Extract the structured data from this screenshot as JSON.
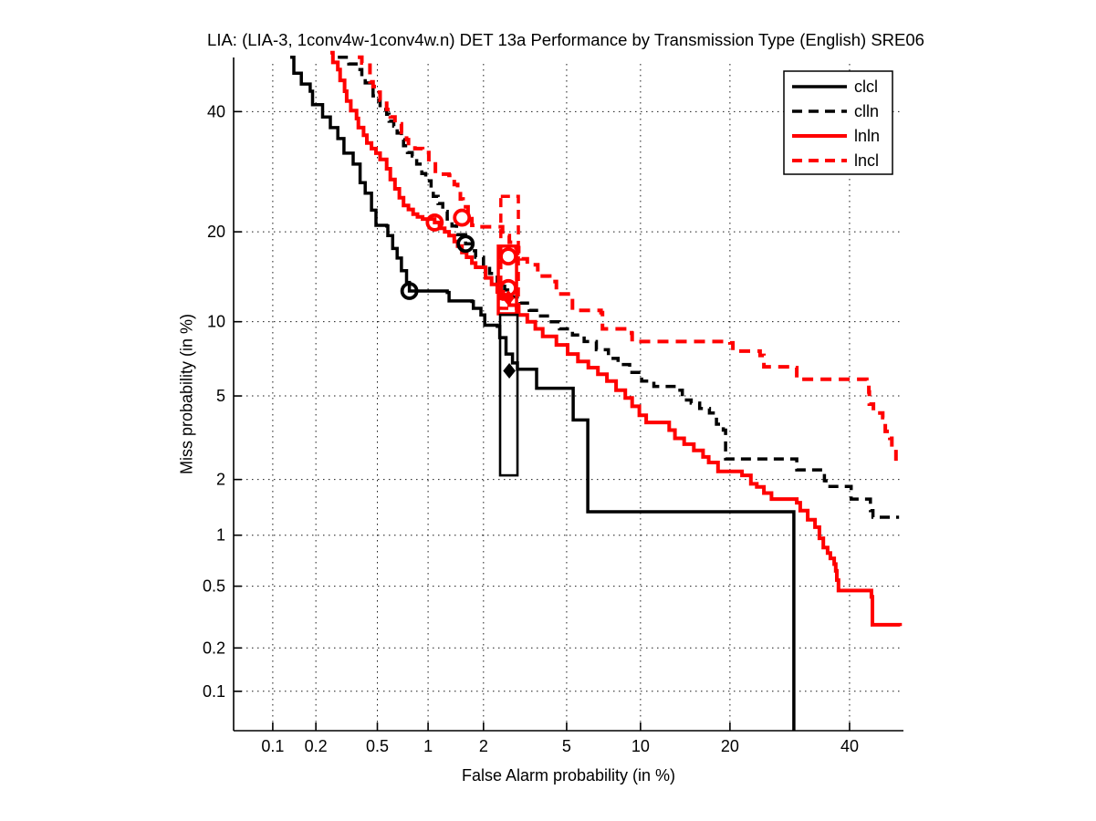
{
  "title": "LIA: (LIA-3, 1conv4w-1conv4w.n) DET 13a Performance by Transmission Type (English) SRE06",
  "axes": {
    "xlabel": "False Alarm probability (in %)",
    "ylabel": "Miss probability (in %)",
    "x_tick_labels": [
      "0.1",
      "0.2",
      "0.5",
      "1",
      "2",
      "5",
      "10",
      "20",
      "40"
    ],
    "y_tick_labels": [
      "40",
      "20",
      "10",
      "5",
      "2",
      "1",
      "0.5",
      "0.2",
      "0.1"
    ]
  },
  "chart_data": {
    "type": "line",
    "subtype": "DET staircase curves on normal-deviate (probit) scales",
    "title": "LIA: (LIA-3, 1conv4w-1conv4w.n) DET 13a Performance by Transmission Type (English) SRE06",
    "xlabel": "False Alarm probability (in %)",
    "ylabel": "Miss probability (in %)",
    "x_ticks": [
      0.1,
      0.2,
      0.5,
      1,
      2,
      5,
      10,
      20,
      40
    ],
    "y_ticks": [
      40,
      20,
      10,
      5,
      2,
      1,
      0.5,
      0.2,
      0.1
    ],
    "xlim_percent": [
      0.055,
      52
    ],
    "ylim_percent": [
      0.04,
      52
    ],
    "grid": "dotted",
    "legend_position": "top-right",
    "colors": {
      "black": "#000000",
      "red": "#ff0000"
    },
    "series": [
      {
        "name": "clcl",
        "color": "#000000",
        "line": "solid",
        "points": [
          [
            0.133,
            50.5
          ],
          [
            0.141,
            47.4
          ],
          [
            0.159,
            45.3
          ],
          [
            0.183,
            43.9
          ],
          [
            0.19,
            41.3
          ],
          [
            0.217,
            41.3
          ],
          [
            0.222,
            39.0
          ],
          [
            0.25,
            37.0
          ],
          [
            0.28,
            35.0
          ],
          [
            0.307,
            32.4
          ],
          [
            0.352,
            30.5
          ],
          [
            0.39,
            27.4
          ],
          [
            0.42,
            25.7
          ],
          [
            0.46,
            23.1
          ],
          [
            0.49,
            20.9
          ],
          [
            0.57,
            20.8
          ],
          [
            0.58,
            19.5
          ],
          [
            0.62,
            17.8
          ],
          [
            0.66,
            16.6
          ],
          [
            0.7,
            15.1
          ],
          [
            0.75,
            13.8
          ],
          [
            0.78,
            12.9
          ],
          [
            1.28,
            12.75
          ],
          [
            1.31,
            11.9
          ],
          [
            1.74,
            11.85
          ],
          [
            1.77,
            11.2
          ],
          [
            1.94,
            10.6
          ],
          [
            2.03,
            9.7
          ],
          [
            2.35,
            9.6
          ],
          [
            2.42,
            8.7
          ],
          [
            2.6,
            7.5
          ],
          [
            2.8,
            6.9
          ],
          [
            2.96,
            6.5
          ],
          [
            3.65,
            6.5
          ],
          [
            3.65,
            5.4
          ],
          [
            5.34,
            5.4
          ],
          [
            5.34,
            3.9
          ],
          [
            6.17,
            3.9
          ],
          [
            6.17,
            1.35
          ],
          [
            29.9,
            1.35
          ],
          [
            29.9,
            0.04
          ]
        ]
      },
      {
        "name": "clln",
        "color": "#000000",
        "line": "dashed",
        "points": [
          [
            0.28,
            50.5
          ],
          [
            0.33,
            49.2
          ],
          [
            0.38,
            48.1
          ],
          [
            0.4,
            46.4
          ],
          [
            0.42,
            45.5
          ],
          [
            0.46,
            44.6
          ],
          [
            0.47,
            43.0
          ],
          [
            0.51,
            42.0
          ],
          [
            0.52,
            40.4
          ],
          [
            0.57,
            39.5
          ],
          [
            0.59,
            38.2
          ],
          [
            0.63,
            37.3
          ],
          [
            0.66,
            36.0
          ],
          [
            0.7,
            34.8
          ],
          [
            0.72,
            33.7
          ],
          [
            0.76,
            32.5
          ],
          [
            0.81,
            31.9
          ],
          [
            0.86,
            30.5
          ],
          [
            0.92,
            28.9
          ],
          [
            0.97,
            27.7
          ],
          [
            1.04,
            26.4
          ],
          [
            1.07,
            25.2
          ],
          [
            1.14,
            24.1
          ],
          [
            1.21,
            22.9
          ],
          [
            1.28,
            21.8
          ],
          [
            1.36,
            20.8
          ],
          [
            1.44,
            19.6
          ],
          [
            1.61,
            18.4
          ],
          [
            1.74,
            17.5
          ],
          [
            1.82,
            16.7
          ],
          [
            2.0,
            15.6
          ],
          [
            2.15,
            14.8
          ],
          [
            2.35,
            13.8
          ],
          [
            2.56,
            13.0
          ],
          [
            2.76,
            12.3
          ],
          [
            3.05,
            11.7
          ],
          [
            3.37,
            11.0
          ],
          [
            3.72,
            10.5
          ],
          [
            4.1,
            10.0
          ],
          [
            4.65,
            9.4
          ],
          [
            5.3,
            8.9
          ],
          [
            5.95,
            8.4
          ],
          [
            6.7,
            7.8
          ],
          [
            7.5,
            7.2
          ],
          [
            8.2,
            6.8
          ],
          [
            9.1,
            6.3
          ],
          [
            10.1,
            5.8
          ],
          [
            11.2,
            5.5
          ],
          [
            13.4,
            5.3
          ],
          [
            14.1,
            4.8
          ],
          [
            15.1,
            4.65
          ],
          [
            16.1,
            4.4
          ],
          [
            17.3,
            4.2
          ],
          [
            18.2,
            3.73
          ],
          [
            19.1,
            3.5
          ],
          [
            19.4,
            2.54
          ],
          [
            30.4,
            2.54
          ],
          [
            30.4,
            2.24
          ],
          [
            34.8,
            2.24
          ],
          [
            35.3,
            1.97
          ],
          [
            35.6,
            1.84
          ],
          [
            39.8,
            1.84
          ],
          [
            40.3,
            1.58
          ],
          [
            43.7,
            1.58
          ],
          [
            44.0,
            1.37
          ],
          [
            44.5,
            1.26
          ],
          [
            49.6,
            1.26
          ]
        ]
      },
      {
        "name": "lnln",
        "color": "#ff0000",
        "line": "solid",
        "points": [
          [
            0.25,
            51.4
          ],
          [
            0.26,
            49.5
          ],
          [
            0.28,
            48.1
          ],
          [
            0.29,
            46.0
          ],
          [
            0.31,
            43.9
          ],
          [
            0.32,
            42.0
          ],
          [
            0.34,
            40.2
          ],
          [
            0.37,
            38.7
          ],
          [
            0.38,
            37.0
          ],
          [
            0.41,
            35.6
          ],
          [
            0.43,
            34.2
          ],
          [
            0.46,
            33.2
          ],
          [
            0.49,
            32.4
          ],
          [
            0.52,
            31.3
          ],
          [
            0.57,
            29.7
          ],
          [
            0.6,
            27.9
          ],
          [
            0.64,
            26.4
          ],
          [
            0.68,
            25.0
          ],
          [
            0.72,
            23.8
          ],
          [
            0.77,
            23.2
          ],
          [
            0.82,
            22.5
          ],
          [
            0.87,
            22.1
          ],
          [
            0.93,
            21.8
          ],
          [
            1.09,
            21.3
          ],
          [
            1.16,
            20.5
          ],
          [
            1.24,
            20.0
          ],
          [
            1.31,
            19.5
          ],
          [
            1.4,
            18.7
          ],
          [
            1.46,
            18.1
          ],
          [
            1.54,
            17.3
          ],
          [
            1.63,
            16.7
          ],
          [
            1.74,
            16.0
          ],
          [
            1.82,
            15.5
          ],
          [
            2.05,
            14.3
          ],
          [
            2.2,
            13.6
          ],
          [
            2.35,
            12.8
          ],
          [
            2.52,
            12.1
          ],
          [
            2.7,
            11.5
          ],
          [
            3.0,
            10.6
          ],
          [
            3.3,
            10.0
          ],
          [
            3.6,
            9.4
          ],
          [
            3.9,
            8.8
          ],
          [
            4.5,
            8.15
          ],
          [
            5.05,
            7.5
          ],
          [
            5.6,
            7.0
          ],
          [
            6.2,
            6.6
          ],
          [
            6.8,
            6.2
          ],
          [
            7.4,
            5.8
          ],
          [
            8.05,
            5.3
          ],
          [
            8.75,
            4.9
          ],
          [
            9.3,
            4.5
          ],
          [
            9.9,
            4.1
          ],
          [
            10.5,
            3.8
          ],
          [
            12.7,
            3.5
          ],
          [
            13.3,
            3.2
          ],
          [
            14.3,
            3.0
          ],
          [
            15.4,
            2.8
          ],
          [
            16.5,
            2.6
          ],
          [
            17.2,
            2.44
          ],
          [
            18.4,
            2.2
          ],
          [
            21.7,
            2.1
          ],
          [
            23.0,
            1.9
          ],
          [
            23.9,
            1.83
          ],
          [
            25.0,
            1.7
          ],
          [
            26.2,
            1.58
          ],
          [
            30.4,
            1.51
          ],
          [
            31.0,
            1.37
          ],
          [
            32.3,
            1.22
          ],
          [
            33.6,
            1.11
          ],
          [
            34.4,
            0.96
          ],
          [
            35.1,
            0.85
          ],
          [
            35.9,
            0.79
          ],
          [
            36.4,
            0.735
          ],
          [
            37.1,
            0.68
          ],
          [
            37.4,
            0.62
          ],
          [
            37.6,
            0.545
          ],
          [
            37.9,
            0.47
          ],
          [
            44.2,
            0.43
          ],
          [
            44.4,
            0.285
          ],
          [
            49.8,
            0.28
          ]
        ]
      },
      {
        "name": "lncl",
        "color": "#ff0000",
        "line": "dashed",
        "points": [
          [
            0.377,
            50.5
          ],
          [
            0.4,
            49.4
          ],
          [
            0.45,
            45.7
          ],
          [
            0.47,
            44.8
          ],
          [
            0.49,
            43.7
          ],
          [
            0.52,
            42.2
          ],
          [
            0.57,
            40.4
          ],
          [
            0.6,
            39.0
          ],
          [
            0.64,
            37.7
          ],
          [
            0.7,
            36.1
          ],
          [
            0.75,
            34.8
          ],
          [
            0.77,
            33.7
          ],
          [
            0.84,
            33.2
          ],
          [
            0.93,
            32.5
          ],
          [
            1.01,
            30.9
          ],
          [
            1.1,
            28.8
          ],
          [
            1.31,
            28.6
          ],
          [
            1.36,
            28.0
          ],
          [
            1.4,
            27.1
          ],
          [
            1.46,
            26.0
          ],
          [
            1.51,
            24.8
          ],
          [
            1.56,
            23.6
          ],
          [
            1.66,
            22.1
          ],
          [
            1.74,
            20.9
          ],
          [
            1.82,
            20.7
          ],
          [
            2.4,
            20.7
          ],
          [
            2.5,
            19.5
          ],
          [
            2.7,
            18.6
          ],
          [
            2.84,
            17.9
          ],
          [
            3.0,
            17.2
          ],
          [
            3.1,
            16.5
          ],
          [
            3.3,
            15.8
          ],
          [
            3.7,
            14.5
          ],
          [
            4.2,
            13.9
          ],
          [
            4.5,
            12.6
          ],
          [
            5.2,
            12.35
          ],
          [
            5.3,
            11.0
          ],
          [
            7.0,
            10.8
          ],
          [
            7.1,
            9.4
          ],
          [
            9.25,
            9.05
          ],
          [
            9.3,
            8.4
          ],
          [
            20.0,
            8.3
          ],
          [
            20.4,
            7.7
          ],
          [
            24.4,
            7.4
          ],
          [
            25.0,
            6.65
          ],
          [
            30.2,
            6.6
          ],
          [
            30.4,
            5.9
          ],
          [
            43.3,
            5.8
          ],
          [
            43.7,
            5.2
          ],
          [
            43.8,
            4.6
          ],
          [
            44.6,
            4.2
          ],
          [
            46.4,
            4.0
          ],
          [
            46.9,
            3.45
          ],
          [
            47.8,
            3.2
          ],
          [
            48.2,
            2.9
          ],
          [
            49.0,
            2.54
          ],
          [
            49.5,
            2.5
          ]
        ]
      }
    ],
    "markers": [
      {
        "shape": "circle",
        "color": "#000000",
        "point": [
          0.78,
          12.9
        ]
      },
      {
        "shape": "circle",
        "color": "#000000",
        "point": [
          1.61,
          18.4
        ]
      },
      {
        "shape": "circle",
        "color": "#ff0000",
        "point": [
          1.09,
          21.3
        ]
      },
      {
        "shape": "circle",
        "color": "#ff0000",
        "point": [
          1.54,
          22.0
        ]
      },
      {
        "shape": "circle",
        "color": "#ff0000",
        "point": [
          2.67,
          16.8
        ]
      },
      {
        "shape": "circle",
        "color": "#ff0000",
        "point": [
          2.67,
          13.2
        ]
      },
      {
        "shape": "diamond",
        "color": "#ff0000",
        "point": [
          2.67,
          12.2
        ]
      },
      {
        "shape": "diamond",
        "color": "#000000",
        "point": [
          2.7,
          6.4
        ]
      }
    ],
    "boxes": [
      {
        "color": "#ff0000",
        "line": "dashed",
        "fa_range": [
          2.45,
          2.99
        ],
        "miss_range": [
          11.2,
          25.2
        ]
      },
      {
        "color": "#ff0000",
        "line": "solid",
        "fa_range": [
          2.38,
          2.93
        ],
        "miss_range": [
          10.7,
          18.1
        ]
      },
      {
        "color": "#000000",
        "line": "solid",
        "fa_range": [
          2.43,
          2.96
        ],
        "miss_range": [
          2.1,
          10.6
        ]
      }
    ],
    "legend_entries": [
      "clcl",
      "clln",
      "lnln",
      "lncl"
    ]
  }
}
